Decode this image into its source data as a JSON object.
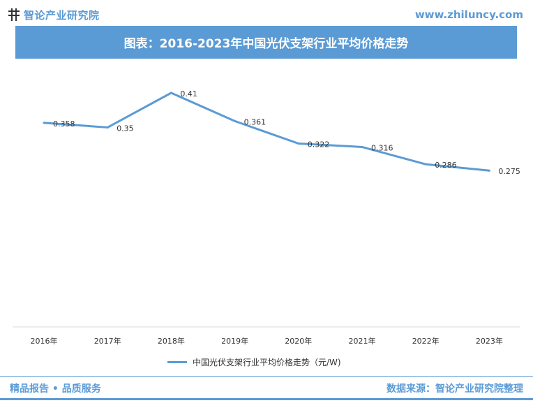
{
  "header": {
    "brand_name": "智论产业研究院",
    "url": "www.zhiluncy.com",
    "title": "图表：2016-2023年中国光伏支架行业平均价格走势"
  },
  "legend": {
    "label": "中国光伏支架行业平均价格走势（元/W)"
  },
  "footer": {
    "left": "精品报告 • 品质服务",
    "right": "数据来源：智论产业研究院整理"
  },
  "colors": {
    "accent": "#5b9bd5"
  },
  "chart_data": {
    "type": "line",
    "categories": [
      "2016年",
      "2017年",
      "2018年",
      "2019年",
      "2020年",
      "2021年",
      "2022年",
      "2023年"
    ],
    "series": [
      {
        "name": "中国光伏支架行业平均价格走势（元/W)",
        "values": [
          0.358,
          0.35,
          0.41,
          0.361,
          0.322,
          0.316,
          0.286,
          0.275
        ]
      }
    ],
    "data_labels": [
      "0.358",
      "0.35",
      "0.41",
      "0.361",
      "0.322",
      "0.316",
      "0.286",
      "0.275"
    ],
    "grid": false,
    "legend_position": "bottom"
  }
}
